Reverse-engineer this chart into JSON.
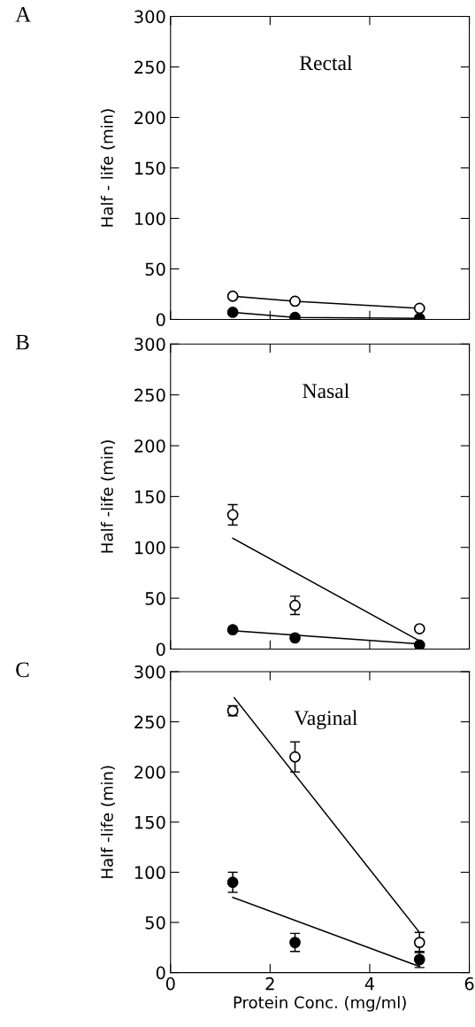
{
  "chart_data": [
    {
      "type": "line",
      "title": "Rectal",
      "ylabel": "Half - life (min)",
      "annotations": [
        "A"
      ],
      "xlim": [
        0,
        6
      ],
      "xticks": [
        0,
        2,
        4,
        6
      ],
      "ylim": [
        0,
        300
      ],
      "yticks": [
        0,
        50,
        100,
        150,
        200,
        250,
        300
      ],
      "tick_labels": "y",
      "grid": false,
      "legend": false,
      "series": [
        {
          "marker": "open circle",
          "color": "#000000",
          "x": [
            1.25,
            2.5,
            5
          ],
          "values": [
            23,
            18,
            11
          ]
        },
        {
          "marker": "circle",
          "color": "#000000",
          "x": [
            1.25,
            2.5,
            5
          ],
          "values": [
            7,
            2,
            1
          ]
        }
      ]
    },
    {
      "type": "scatter",
      "title": "Nasal",
      "ylabel": "Half -life (min)",
      "annotations": [
        "B"
      ],
      "xlim": [
        0,
        6
      ],
      "xticks": [
        0,
        2,
        4,
        6
      ],
      "ylim": [
        0,
        300
      ],
      "yticks": [
        0,
        50,
        100,
        150,
        200,
        250,
        300
      ],
      "tick_labels": "y",
      "grid": false,
      "legend": false,
      "series": [
        {
          "marker": "open circle",
          "color": "#000000",
          "x": [
            1.25,
            2.5,
            5
          ],
          "values": [
            132,
            43,
            20
          ],
          "errors": [
            10,
            9,
            null
          ]
        },
        {
          "marker": "circle",
          "color": "#000000",
          "x": [
            1.25,
            2.5,
            5
          ],
          "values": [
            19,
            11,
            4
          ]
        },
        {
          "type": "line",
          "marker": "none",
          "color": "#000000",
          "x": [
            1.25,
            5
          ],
          "values": [
            109,
            8
          ]
        },
        {
          "type": "line",
          "marker": "none",
          "color": "#000000",
          "x": [
            1.25,
            5
          ],
          "values": [
            18,
            5
          ]
        }
      ]
    },
    {
      "type": "scatter",
      "title": "Vaginal",
      "ylabel": "Half -life (min)",
      "xlabel": "Protein Conc. (mg/ml)",
      "annotations": [
        "C"
      ],
      "xlim": [
        0,
        6
      ],
      "xticks": [
        0,
        2,
        4,
        6
      ],
      "ylim": [
        0,
        300
      ],
      "yticks": [
        0,
        50,
        100,
        150,
        200,
        250,
        300
      ],
      "grid": false,
      "legend": false,
      "series": [
        {
          "marker": "open circle",
          "color": "#000000",
          "x": [
            1.25,
            2.5,
            5
          ],
          "values": [
            261,
            215,
            30
          ],
          "errors": [
            5,
            15,
            10
          ]
        },
        {
          "marker": "circle",
          "color": "#000000",
          "x": [
            1.25,
            2.5,
            5
          ],
          "values": [
            90,
            30,
            13
          ],
          "errors": [
            10,
            9,
            8
          ]
        },
        {
          "type": "line",
          "marker": "none",
          "color": "#000000",
          "x": [
            1.28,
            5
          ],
          "values": [
            274,
            40
          ]
        },
        {
          "type": "line",
          "marker": "none",
          "color": "#000000",
          "x": [
            1.25,
            5
          ],
          "values": [
            75,
            6
          ]
        }
      ]
    }
  ]
}
